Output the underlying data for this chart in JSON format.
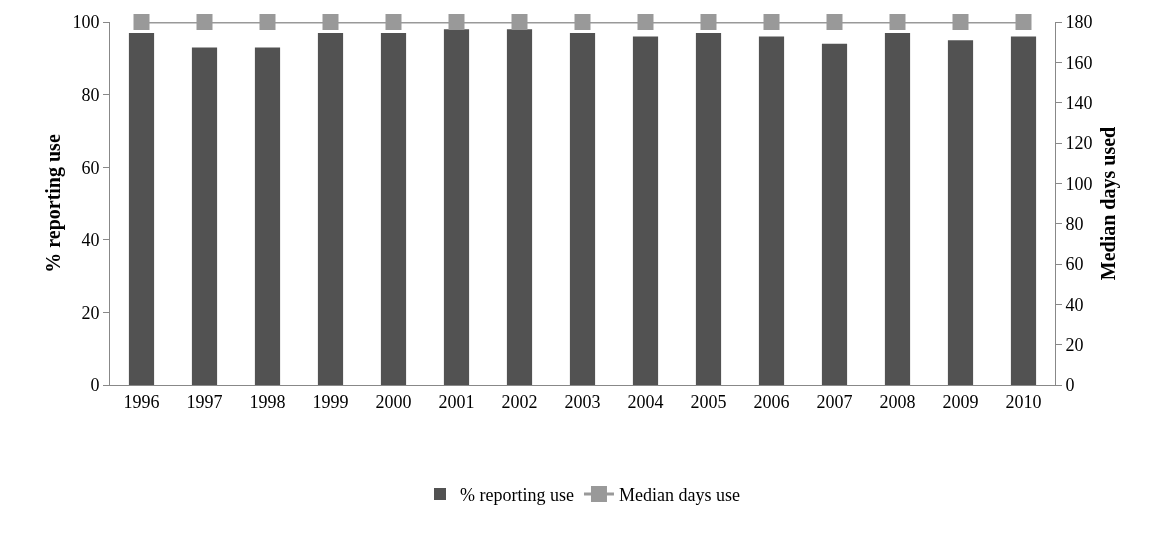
{
  "chart_data": {
    "type": "bar",
    "categories": [
      "1996",
      "1997",
      "1998",
      "1999",
      "2000",
      "2001",
      "2002",
      "2003",
      "2004",
      "2005",
      "2006",
      "2007",
      "2008",
      "2009",
      "2010"
    ],
    "ylabel": "% reporting use",
    "y2label": "Median days used",
    "series": [
      {
        "name": "% reporting use",
        "color": "#525252",
        "values": [
          97,
          93,
          93,
          97,
          97,
          98,
          98,
          97,
          96,
          97,
          96,
          94,
          97,
          95,
          96
        ]
      },
      {
        "name": "Median days use",
        "type": "line",
        "axis": "y2",
        "color": "#999999",
        "marker": "square",
        "values": [
          180,
          180,
          180,
          180,
          180,
          180,
          180,
          180,
          180,
          180,
          180,
          180,
          180,
          180,
          180
        ]
      }
    ],
    "ylim": [
      0,
      100
    ],
    "yticks": [
      0,
      20,
      40,
      60,
      80,
      100
    ],
    "y2lim": [
      0,
      180
    ],
    "y2ticks": [
      0,
      20,
      40,
      60,
      80,
      100,
      120,
      140,
      160,
      180
    ],
    "grid": false,
    "legend": "bottom"
  }
}
